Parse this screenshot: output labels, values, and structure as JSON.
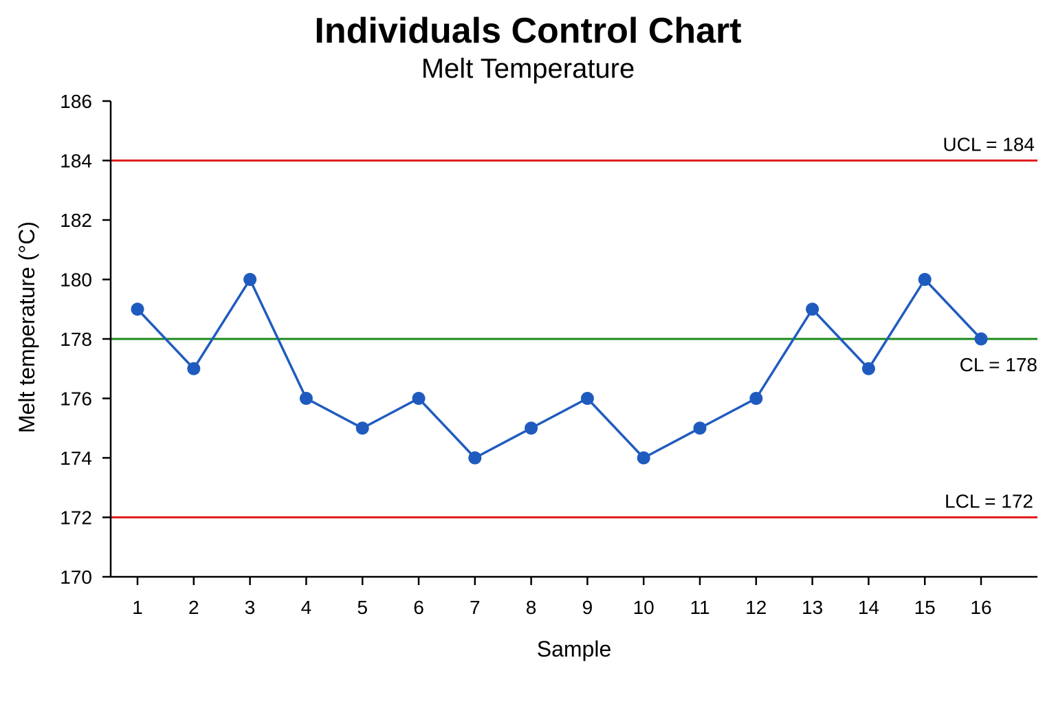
{
  "chart_data": {
    "type": "line",
    "title": "Individuals Control Chart",
    "subtitle": "Melt Temperature",
    "xlabel": "Sample",
    "ylabel": "Melt temperature (°C)",
    "categories": [
      "1",
      "2",
      "3",
      "4",
      "5",
      "6",
      "7",
      "8",
      "9",
      "10",
      "11",
      "12",
      "13",
      "14",
      "15",
      "16"
    ],
    "series": [
      {
        "values": [
          179,
          177,
          180,
          176,
          175,
          176,
          174,
          175,
          176,
          174,
          175,
          176,
          179,
          177,
          180,
          178
        ],
        "color": "#1f5bbf"
      }
    ],
    "ylim": [
      170,
      186
    ],
    "yticks": [
      170,
      172,
      174,
      176,
      178,
      180,
      182,
      184,
      186
    ],
    "control_limits": [
      {
        "key": "ucl",
        "value": 184,
        "label": "UCL = 184",
        "color": "#e01e1e"
      },
      {
        "key": "cl",
        "value": 178,
        "label": "CL = 178",
        "color": "#1b8a1b"
      },
      {
        "key": "lcl",
        "value": 172,
        "label": "LCL = 172",
        "color": "#e01e1e"
      }
    ],
    "grid": false,
    "legend": "none"
  }
}
